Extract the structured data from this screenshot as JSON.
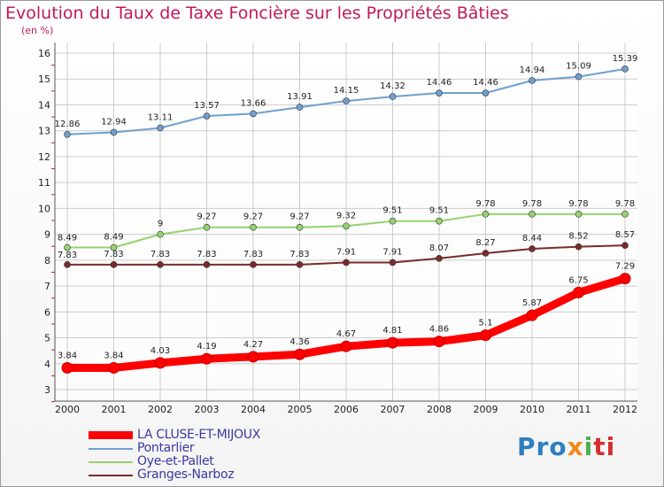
{
  "title": "Evolution du Taux de Taxe Foncière sur les Propriétés Bâties",
  "unit_label": "(en %)",
  "logo": {
    "text": "Proxiti",
    "part1": "Pro",
    "part2": "x",
    "part3": "i",
    "part4": "ti"
  },
  "colors": {
    "la_cluse": "#ff0000",
    "pontarlier": "#6fa0cf",
    "oye": "#96d26e",
    "granges": "#7a2a2a",
    "grid": "#cccccc",
    "axis": "#555555",
    "axis_tick": "#c2185b"
  },
  "chart_data": {
    "type": "line",
    "title": "Evolution du Taux de Taxe Foncière sur les Propriétés Bâties",
    "ylabel": "(en %)",
    "xlabel": "",
    "x": [
      "2000",
      "2001",
      "2002",
      "2003",
      "2004",
      "2005",
      "2006",
      "2007",
      "2008",
      "2009",
      "2010",
      "2011",
      "2012"
    ],
    "ylim": [
      3,
      16
    ],
    "yticks": [
      "3",
      "4",
      "5",
      "6",
      "7",
      "8",
      "9",
      "10",
      "11",
      "12",
      "13",
      "14",
      "15",
      "16"
    ],
    "series": [
      {
        "name": "LA CLUSE-ET-MIJOUX",
        "key": "la_cluse",
        "values": [
          3.84,
          3.84,
          4.03,
          4.19,
          4.27,
          4.36,
          4.67,
          4.81,
          4.86,
          5.1,
          5.87,
          6.75,
          7.29
        ],
        "labels": [
          "3.84",
          "3.84",
          "4.03",
          "4.19",
          "4.27",
          "4.36",
          "4.67",
          "4.81",
          "4.86",
          "5.1",
          "5.87",
          "6.75",
          "7.29"
        ]
      },
      {
        "name": "Pontarlier",
        "key": "pontarlier",
        "values": [
          12.86,
          12.94,
          13.11,
          13.57,
          13.66,
          13.91,
          14.15,
          14.32,
          14.46,
          14.46,
          14.94,
          15.09,
          15.39
        ],
        "labels": [
          "12.86",
          "12.94",
          "13.11",
          "13.57",
          "13.66",
          "13.91",
          "14.15",
          "14.32",
          "14.46",
          "14.46",
          "14.94",
          "15.09",
          "15.39"
        ]
      },
      {
        "name": "Oye-et-Pallet",
        "key": "oye",
        "values": [
          8.49,
          8.49,
          9,
          9.27,
          9.27,
          9.27,
          9.32,
          9.51,
          9.51,
          9.78,
          9.78,
          9.78,
          9.78
        ],
        "labels": [
          "8.49",
          "8.49",
          "9",
          "9.27",
          "9.27",
          "9.27",
          "9.32",
          "9.51",
          "9.51",
          "9.78",
          "9.78",
          "9.78",
          "9.78"
        ]
      },
      {
        "name": "Granges-Narboz",
        "key": "granges",
        "values": [
          7.83,
          7.83,
          7.83,
          7.83,
          7.83,
          7.83,
          7.91,
          7.91,
          8.07,
          8.27,
          8.44,
          8.52,
          8.57
        ],
        "labels": [
          "7.83",
          "7.83",
          "7.83",
          "7.83",
          "7.83",
          "7.83",
          "7.91",
          "7.91",
          "8.07",
          "8.27",
          "8.44",
          "8.52",
          "8.57"
        ]
      }
    ],
    "legend_position": "bottom-left"
  }
}
